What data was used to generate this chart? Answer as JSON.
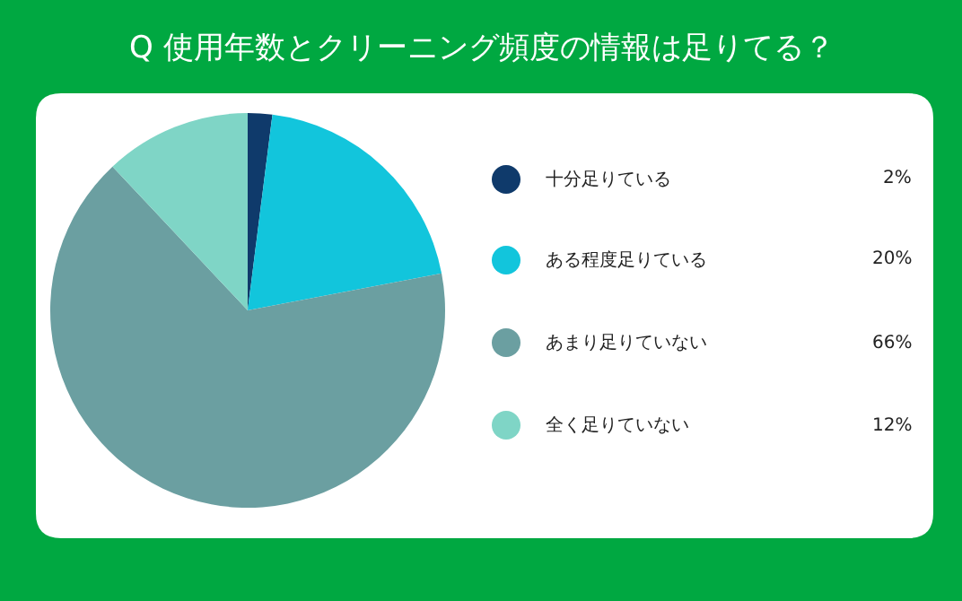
{
  "chart_data": {
    "type": "pie",
    "title": "Q 使用年数とクリーニング頻度の情報は足りてる？",
    "categories": [
      "十分足りている",
      "ある程度足りている",
      "あまり足りていない",
      "全く足りていない"
    ],
    "values": [
      2,
      20,
      66,
      12
    ],
    "colors": [
      "#0f3a6b",
      "#12c5dc",
      "#6b9fa1",
      "#7fd5c6"
    ],
    "value_labels": [
      "2%",
      "20%",
      "66%",
      "12%"
    ],
    "legend": "right"
  }
}
